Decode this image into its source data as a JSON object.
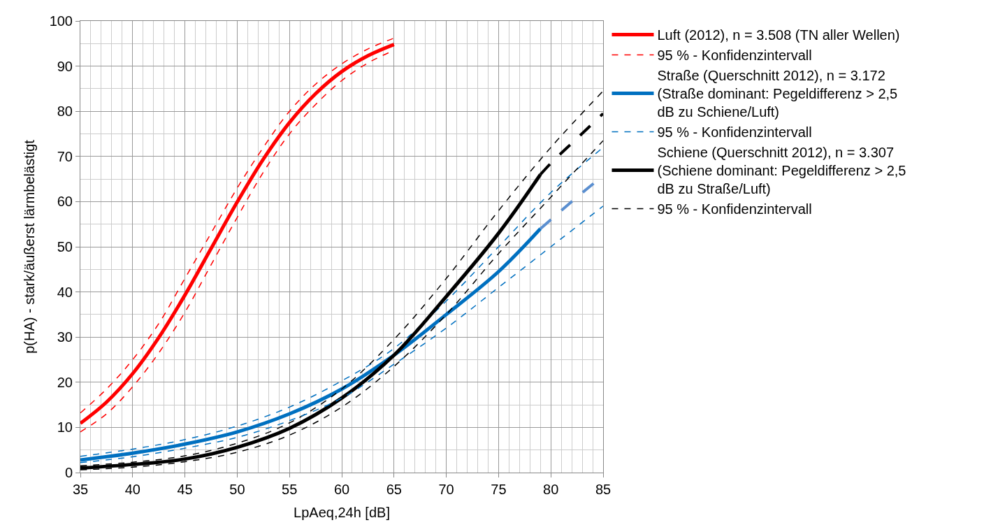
{
  "chart_data": {
    "type": "line",
    "xlabel": "LpAeq,24h [dB]",
    "ylabel": "p(HA) - stark/äußerst lärmbelästigt",
    "xlim": [
      35,
      85
    ],
    "xticks": [
      35,
      40,
      45,
      50,
      55,
      60,
      65,
      70,
      75,
      80,
      85
    ],
    "ylim": [
      0,
      100
    ],
    "yticks": [
      0,
      10,
      20,
      30,
      40,
      50,
      60,
      70,
      80,
      90,
      100
    ],
    "grid": true,
    "legend": "right",
    "marker": "none",
    "series": [
      {
        "name": "Luft (2012), n = 3.508 (TN aller Wellen)",
        "color": "#ff0000",
        "line_style": "solid",
        "x": [
          35,
          37.5,
          40,
          42.5,
          45,
          47.5,
          50,
          52.5,
          55,
          57.5,
          60,
          62.5,
          65
        ],
        "values": [
          10.9,
          15.6,
          21.9,
          29.9,
          39.3,
          49.6,
          59.9,
          69.4,
          77.5,
          83.9,
          88.8,
          92.3,
          94.8
        ]
      },
      {
        "name": "95 % - Konfidenzintervall",
        "color": "#ff0000",
        "line_style": "dashed",
        "x": [
          35,
          37.5,
          40,
          42.5,
          45,
          47.5,
          50,
          52.5,
          55,
          57.5,
          60,
          62.5,
          65
        ],
        "values": [
          13.2,
          18.5,
          25,
          33,
          43,
          53,
          63,
          72,
          80,
          86,
          90.5,
          93.8,
          96.2
        ]
      },
      {
        "name": "Straße (Querschnitt 2012), n = 3.172 (Straße dominant: Pegeldifferenz > 2,5 dB zu Schiene/Luft)",
        "color": "#0070c0",
        "line_style": "solid",
        "x": [
          35,
          40,
          45,
          50,
          55,
          60,
          65,
          70,
          75,
          79
        ],
        "values": [
          2.8,
          4.3,
          6.3,
          9.0,
          13,
          18.5,
          26,
          35,
          44.5,
          54
        ]
      },
      {
        "name": "95 % - Konfidenzintervall",
        "color": "#0070c0",
        "line_style": "dashed",
        "x": [
          35,
          40,
          45,
          50,
          55,
          60,
          65,
          70,
          75,
          80,
          85
        ],
        "values": [
          3.6,
          5.2,
          7.3,
          10.3,
          14.5,
          20.3,
          27.5,
          38,
          50,
          62,
          72
        ]
      },
      {
        "name": "Schiene (Querschnitt 2012), n = 3.307 (Schiene dominant: Pegeldifferenz > 2,5 dB zu Straße/Luft)",
        "color": "#000000",
        "line_style": "solid",
        "x": [
          35,
          40,
          45,
          50,
          55,
          60,
          65,
          70,
          75,
          79
        ],
        "values": [
          1.0,
          1.8,
          3.0,
          5.6,
          9.8,
          16.5,
          26,
          39,
          53,
          66
        ]
      },
      {
        "name": "95 % - Konfidenzintervall",
        "color": "#000000",
        "line_style": "dashed",
        "x": [
          35,
          40,
          45,
          50,
          55,
          60,
          65,
          70,
          75,
          80,
          85
        ],
        "values": [
          1.5,
          2.3,
          3.7,
          6.5,
          11,
          18.5,
          29.5,
          43,
          58,
          72,
          84.5
        ]
      },
      {
        "color": "#ff0000",
        "line_style": "dashed",
        "x": [
          35,
          37.5,
          40,
          42.5,
          45,
          47.5,
          50,
          52.5,
          55,
          57.5,
          60,
          62.5,
          65
        ],
        "values": [
          9,
          13,
          19,
          26.5,
          35.5,
          46,
          56.5,
          66.5,
          75,
          81.5,
          86.8,
          90.7,
          93.5
        ]
      },
      {
        "color": "#0070c0",
        "line_style": "dashed",
        "x": [
          35,
          40,
          45,
          50,
          55,
          60,
          65,
          70,
          75,
          80,
          85
        ],
        "values": [
          2.2,
          3.5,
          5.4,
          7.8,
          11.5,
          16.5,
          24,
          32,
          41,
          50,
          59
        ]
      },
      {
        "color": "#000000",
        "line_style": "dashed",
        "x": [
          35,
          40,
          45,
          50,
          55,
          60,
          65,
          70,
          75,
          80,
          85
        ],
        "values": [
          0.6,
          1.2,
          2.4,
          4.5,
          8.3,
          14.5,
          23.5,
          35,
          48.5,
          61,
          73.5
        ]
      },
      {
        "color": "#5b8fd0",
        "line_style": "longdash",
        "x": [
          79,
          80,
          82.5,
          85
        ],
        "values": [
          54,
          56,
          61,
          65.7
        ]
      },
      {
        "color": "#000000",
        "line_style": "longdash",
        "x": [
          79,
          80,
          82.5,
          85
        ],
        "values": [
          66,
          68.5,
          74,
          79.5
        ]
      }
    ]
  }
}
